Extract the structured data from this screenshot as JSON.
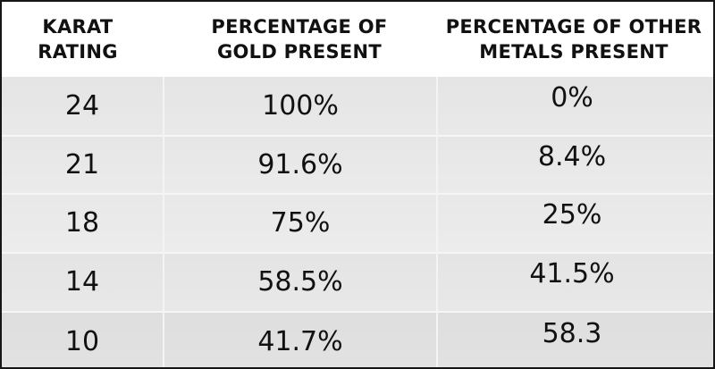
{
  "table": {
    "headers": [
      "KARAT\nRATING",
      "PERCENTAGE OF\nGOLD PRESENT",
      "PERCENTAGE OF OTHER\nMETALS PRESENT"
    ],
    "rows": [
      [
        "24",
        "100%",
        "0%"
      ],
      [
        "21",
        "91.6%",
        "8.4%"
      ],
      [
        "18",
        "75%",
        "25%"
      ],
      [
        "14",
        "58.5%",
        "41.5%"
      ],
      [
        "10",
        "41.7%",
        "58.3"
      ]
    ]
  }
}
